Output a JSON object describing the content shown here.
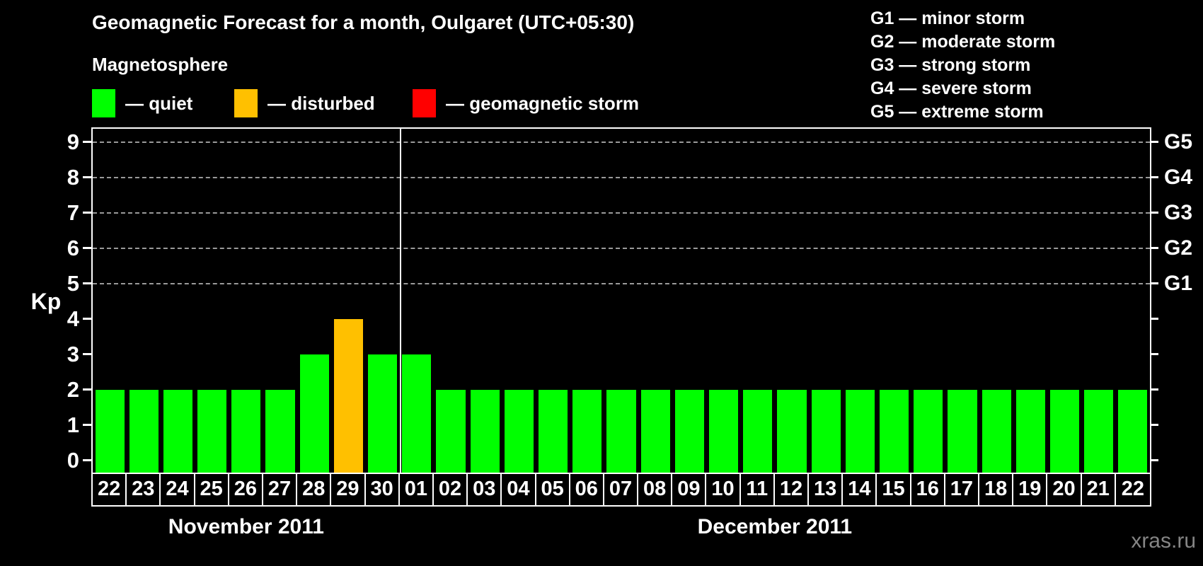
{
  "title": "Geomagnetic Forecast for a month, Oulgaret (UTC+05:30)",
  "subtitle": "Magnetosphere",
  "legend": {
    "items": [
      {
        "name": "quiet",
        "label": "— quiet",
        "color": "#00ff00"
      },
      {
        "name": "disturbed",
        "label": "— disturbed",
        "color": "#ffc000"
      },
      {
        "name": "geomagnetic-storm",
        "label": "— geomagnetic storm",
        "color": "#ff0000"
      }
    ]
  },
  "g_legend": [
    "G1 — minor storm",
    "G2 — moderate storm",
    "G3 — strong storm",
    "G4 — severe storm",
    "G5 — extreme storm"
  ],
  "watermark": "xras.ru",
  "chart_data": {
    "type": "bar",
    "title": "Geomagnetic Forecast for a month, Oulgaret (UTC+05:30)",
    "xlabel": "",
    "ylabel": "Kp",
    "ylim": [
      0,
      9
    ],
    "yticks": [
      0,
      1,
      2,
      3,
      4,
      5,
      6,
      7,
      8,
      9
    ],
    "grid": "dashed horizontal lines at Kp 5-9 (G1-G5 levels)",
    "legend_position": "top-left (bar colors) and top-right (G scale)",
    "right_axis_labels": [
      {
        "label": "G1",
        "kp": 5
      },
      {
        "label": "G2",
        "kp": 6
      },
      {
        "label": "G3",
        "kp": 7
      },
      {
        "label": "G4",
        "kp": 8
      },
      {
        "label": "G5",
        "kp": 9
      }
    ],
    "months": [
      {
        "label": "November 2011",
        "days": 9
      },
      {
        "label": "December 2011",
        "days": 22
      }
    ],
    "categories": [
      "22",
      "23",
      "24",
      "25",
      "26",
      "27",
      "28",
      "29",
      "30",
      "01",
      "02",
      "03",
      "04",
      "05",
      "06",
      "07",
      "08",
      "09",
      "10",
      "11",
      "12",
      "13",
      "14",
      "15",
      "16",
      "17",
      "18",
      "19",
      "20",
      "21",
      "22"
    ],
    "values": [
      2,
      2,
      2,
      2,
      2,
      2,
      3,
      4,
      3,
      3,
      2,
      2,
      2,
      2,
      2,
      2,
      2,
      2,
      2,
      2,
      2,
      2,
      2,
      2,
      2,
      2,
      2,
      2,
      2,
      2,
      2
    ],
    "states": [
      "quiet",
      "quiet",
      "quiet",
      "quiet",
      "quiet",
      "quiet",
      "quiet",
      "disturbed",
      "quiet",
      "quiet",
      "quiet",
      "quiet",
      "quiet",
      "quiet",
      "quiet",
      "quiet",
      "quiet",
      "quiet",
      "quiet",
      "quiet",
      "quiet",
      "quiet",
      "quiet",
      "quiet",
      "quiet",
      "quiet",
      "quiet",
      "quiet",
      "quiet",
      "quiet",
      "quiet"
    ],
    "colors_by_state": {
      "quiet": "#00ff00",
      "disturbed": "#ffc000",
      "storm": "#ff0000"
    }
  }
}
